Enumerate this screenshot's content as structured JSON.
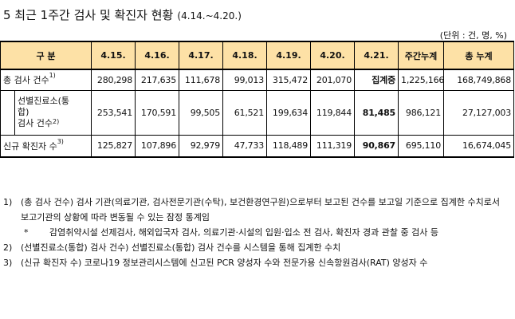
{
  "title": {
    "main": "5 최근 1주간 검사 및 확진자 현황",
    "period": "(4.14.~4.20.)"
  },
  "unit": "(단위 : 건, 명, %)",
  "table": {
    "headers": [
      "구 분",
      "4.15.",
      "4.16.",
      "4.17.",
      "4.18.",
      "4.19.",
      "4.20.",
      "4.21.",
      "주간누계",
      "총 누계"
    ],
    "rows": [
      {
        "label": "총 검사 건수",
        "sup": "1)",
        "values": [
          "280,298",
          "217,635",
          "111,678",
          "99,013",
          "315,472",
          "201,070",
          "집계중",
          "1,225,166",
          "168,749,868"
        ]
      },
      {
        "label": "선별진료소(통합) 검사 건수",
        "label_lines": [
          "선별진료소(통",
          "합)",
          "검사 건수"
        ],
        "sup": "2)",
        "values": [
          "253,541",
          "170,591",
          "99,505",
          "61,521",
          "199,634",
          "119,844",
          "81,485",
          "986,121",
          "27,127,003"
        ]
      },
      {
        "label": "신규 확진자 수",
        "sup": "3)",
        "values": [
          "125,827",
          "107,896",
          "92,979",
          "47,733",
          "118,489",
          "111,319",
          "90,867",
          "695,110",
          "16,674,045"
        ]
      }
    ]
  },
  "notes": {
    "n1_no": "1)",
    "n1_text": "(총 검사 건수) 검사 기관(의료기관, 검사전문기관(수탁), 보건환경연구원)으로부터 보고된 건수를 보고일 기준으로 집계한 수치로서 보고기관의 상황에 따라 변동될 수 있는 잠정 통계임",
    "n1_star_mark": "*",
    "n1_star_text": "감염취약시설 선제검사, 해외입국자 검사, 의료기관·시설의 입원·입소 전 검사, 확진자 경과 관찰 중 검사 등",
    "n2_no": "2)",
    "n2_text": "(선별진료소(통합) 검사 건수) 선별진료소(통합) 검사 건수를 시스템을 통해 집계한 수치",
    "n3_no": "3)",
    "n3_text": "(신규 확진자 수) 코로나19 정보관리시스템에 신고된 PCR 양성자 수와 전문가용 신속항원검사(RAT) 양성자 수"
  },
  "colors": {
    "header_bg": "#fde1a6"
  }
}
